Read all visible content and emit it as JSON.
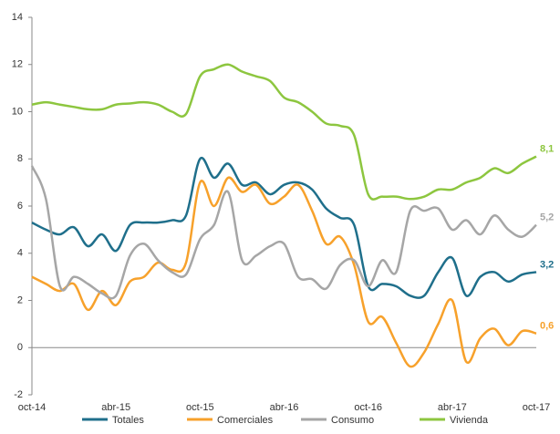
{
  "chart_data": {
    "type": "line",
    "categories": [
      "oct-14",
      null,
      null,
      null,
      null,
      null,
      "abr-15",
      null,
      null,
      null,
      null,
      null,
      "oct-15",
      null,
      null,
      null,
      null,
      null,
      "abr-16",
      null,
      null,
      null,
      null,
      null,
      "oct-16",
      null,
      null,
      null,
      null,
      null,
      "abr-17",
      null,
      null,
      null,
      null,
      null,
      "oct-17"
    ],
    "series": [
      {
        "name": "Totales",
        "color": "#1f6f8b",
        "values": [
          5.3,
          5.0,
          4.8,
          5.1,
          4.3,
          4.8,
          4.1,
          5.2,
          5.3,
          5.3,
          5.4,
          5.6,
          8.0,
          7.2,
          7.8,
          6.9,
          7.0,
          6.5,
          6.9,
          7.0,
          6.7,
          5.9,
          5.5,
          5.2,
          2.6,
          2.7,
          2.6,
          2.2,
          2.2,
          3.2,
          3.8,
          2.2,
          3.0,
          3.2,
          2.8,
          3.1,
          3.2
        ],
        "value_labels": [
          null,
          null,
          null,
          null,
          null,
          null,
          null,
          null,
          null,
          null,
          null,
          null,
          null,
          null,
          null,
          null,
          null,
          null,
          null,
          null,
          null,
          null,
          null,
          null,
          null,
          null,
          null,
          null,
          null,
          null,
          null,
          null,
          null,
          null,
          null,
          null,
          "3,2"
        ]
      },
      {
        "name": "Comerciales",
        "color": "#f7a12b",
        "values": [
          3.0,
          2.7,
          2.4,
          2.7,
          1.6,
          2.4,
          1.8,
          2.8,
          3.0,
          3.6,
          3.3,
          3.6,
          7.0,
          6.0,
          7.2,
          6.6,
          6.9,
          6.1,
          6.4,
          6.9,
          5.8,
          4.4,
          4.7,
          3.5,
          1.1,
          1.3,
          0.2,
          -0.8,
          -0.2,
          1.0,
          2.0,
          -0.6,
          0.4,
          0.8,
          0.1,
          0.7,
          0.6
        ],
        "value_labels": [
          null,
          null,
          null,
          null,
          null,
          null,
          null,
          null,
          null,
          null,
          null,
          null,
          null,
          null,
          null,
          null,
          null,
          null,
          null,
          null,
          null,
          null,
          null,
          null,
          null,
          null,
          null,
          null,
          null,
          null,
          null,
          null,
          null,
          null,
          null,
          null,
          "0,6"
        ]
      },
      {
        "name": "Consumo",
        "color": "#a6a6a6",
        "values": [
          7.7,
          6.3,
          2.6,
          3.0,
          2.7,
          2.3,
          2.2,
          3.9,
          4.4,
          3.7,
          3.2,
          3.1,
          4.6,
          5.2,
          6.6,
          3.7,
          3.9,
          4.3,
          4.4,
          3.0,
          2.9,
          2.5,
          3.5,
          3.7,
          2.6,
          3.7,
          3.2,
          5.8,
          5.8,
          5.9,
          5.0,
          5.4,
          4.8,
          5.6,
          5.0,
          4.7,
          5.2
        ],
        "value_labels": [
          null,
          null,
          null,
          null,
          null,
          null,
          null,
          null,
          null,
          null,
          null,
          null,
          null,
          null,
          null,
          null,
          null,
          null,
          null,
          null,
          null,
          null,
          null,
          null,
          null,
          null,
          null,
          null,
          null,
          null,
          null,
          null,
          null,
          null,
          null,
          null,
          "5,2"
        ]
      },
      {
        "name": "Vivienda",
        "color": "#8dc63f",
        "values": [
          10.3,
          10.4,
          10.3,
          10.2,
          10.1,
          10.1,
          10.3,
          10.35,
          10.4,
          10.3,
          10.0,
          9.9,
          11.5,
          11.8,
          12.0,
          11.7,
          11.5,
          11.3,
          10.6,
          10.4,
          10.0,
          9.5,
          9.4,
          9.0,
          6.5,
          6.4,
          6.4,
          6.3,
          6.4,
          6.7,
          6.7,
          7.0,
          7.2,
          7.6,
          7.4,
          7.8,
          8.1
        ],
        "value_labels": [
          null,
          null,
          null,
          null,
          null,
          null,
          null,
          null,
          null,
          null,
          null,
          null,
          null,
          null,
          null,
          null,
          null,
          null,
          null,
          null,
          null,
          null,
          null,
          null,
          null,
          null,
          null,
          null,
          null,
          null,
          null,
          null,
          null,
          null,
          null,
          null,
          "8,1"
        ]
      }
    ],
    "ylim": [
      -2,
      14
    ],
    "yticks": [
      -2,
      0,
      2,
      4,
      6,
      8,
      10,
      12,
      14
    ],
    "grid": false
  }
}
